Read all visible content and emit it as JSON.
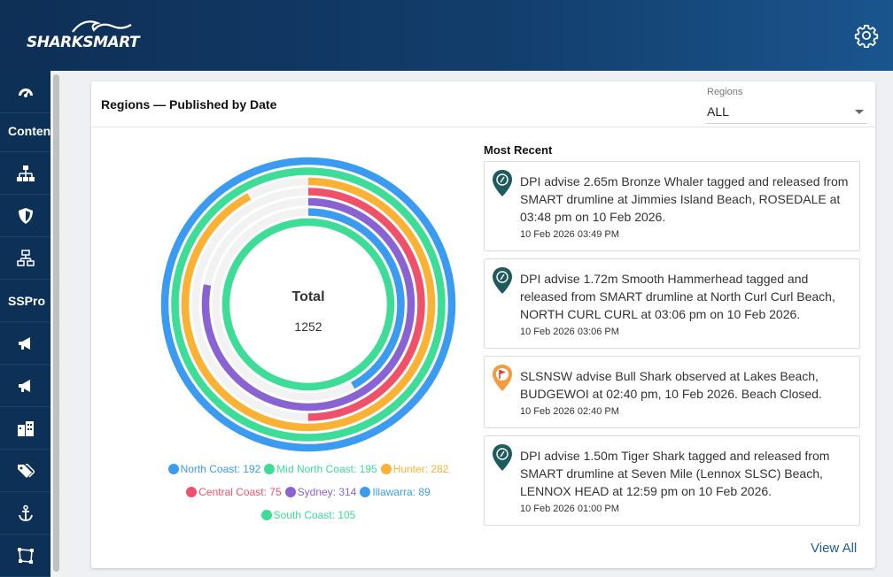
{
  "app": {
    "logo_text": "SHARKSMART"
  },
  "sidebar": {
    "items": [
      {
        "type": "icon",
        "icon": "dashboard-icon"
      },
      {
        "type": "text",
        "label": "Content"
      },
      {
        "type": "icon",
        "icon": "sitemap-icon"
      },
      {
        "type": "icon",
        "icon": "shield-icon"
      },
      {
        "type": "icon",
        "icon": "network-icon"
      },
      {
        "type": "text",
        "label": "SSPro"
      },
      {
        "type": "icon",
        "icon": "megaphone-icon"
      },
      {
        "type": "icon",
        "icon": "megaphone-icon"
      },
      {
        "type": "icon",
        "icon": "buildings-icon"
      },
      {
        "type": "icon",
        "icon": "tags-icon"
      },
      {
        "type": "icon",
        "icon": "anchor-icon"
      },
      {
        "type": "icon",
        "icon": "polygon-icon"
      }
    ]
  },
  "card": {
    "title": "Regions — Published by Date",
    "filter": {
      "label": "Regions",
      "value": "ALL"
    }
  },
  "chart_data": {
    "type": "radial-bar",
    "center_label": "Total",
    "center_value": "1252",
    "series": [
      {
        "name": "North Coast",
        "value": 192,
        "color": "#3b9bf0",
        "label": "North Coast: 192"
      },
      {
        "name": "Mid North Coast",
        "value": 195,
        "color": "#3ddc97",
        "label": "Mid North Coast: 195"
      },
      {
        "name": "Hunter",
        "value": 282,
        "color": "#f9b234",
        "label": "Hunter: 282"
      },
      {
        "name": "Central Coast",
        "value": 75,
        "color": "#f0516a",
        "label": "Central Coast: 75"
      },
      {
        "name": "Sydney",
        "value": 314,
        "color": "#8a63d2",
        "label": "Sydney: 314"
      },
      {
        "name": "Illawarra",
        "value": 89,
        "color": "#3b9bf0",
        "label": "Illawarra: 89"
      },
      {
        "name": "South Coast",
        "value": 105,
        "color": "#3ddc97",
        "label": "South Coast: 105"
      }
    ],
    "ring_fractions": [
      1.0,
      1.0,
      0.92,
      0.5,
      0.78,
      0.42,
      1.0
    ]
  },
  "recent": {
    "title": "Most Recent",
    "items": [
      {
        "text": "DPI advise 2.65m Bronze Whaler tagged and released from SMART drumline at Jimmies Island Beach, ROSEDALE at 03:48 pm on 10 Feb 2026.",
        "date": "10 Feb 2026 03:49 PM",
        "icon": "tag-pin-icon"
      },
      {
        "text": "DPI advise 1.72m Smooth Hammerhead tagged and released from SMART drumline at North Curl Curl Beach, NORTH CURL CURL at 03:06 pm on 10 Feb 2026.",
        "date": "10 Feb 2026 03:06 PM",
        "icon": "tag-pin-icon"
      },
      {
        "text": "SLSNSW advise Bull Shark observed at Lakes Beach, BUDGEWOI at 02:40 pm, 10 Feb 2026. Beach Closed.",
        "date": "10 Feb 2026 02:40 PM",
        "icon": "flag-pin-icon"
      },
      {
        "text": "DPI advise 1.50m Tiger Shark tagged and released from SMART drumline at Seven Mile (Lennox SLSC) Beach, LENNOX HEAD at 12:59 pm on 10 Feb 2026.",
        "date": "10 Feb 2026 01:00 PM",
        "icon": "tag-pin-icon"
      }
    ],
    "view_all": "View All"
  },
  "colors": {
    "header": "#0e2f56",
    "sidebar": "#0d3057",
    "pin_teal": "#1f5a5e",
    "pin_flag": "#f39c3f",
    "link": "#1c5d99"
  }
}
